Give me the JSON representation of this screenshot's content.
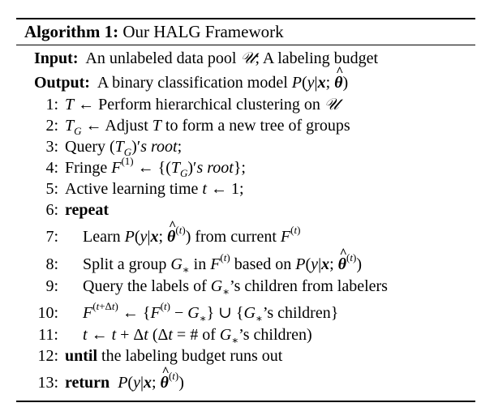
{
  "algorithm": {
    "caption_label": "Algorithm 1:",
    "caption_title": "Our HALG Framework",
    "input_label": "Input:",
    "input_text": "An unlabeled data pool 𝒰; A labeling budget",
    "output_label": "Output:",
    "output_text": "A binary classification model P(y|x; θ̂)",
    "lines": [
      {
        "num": "1:",
        "text": "T ← Perform hierarchical clustering on 𝒰"
      },
      {
        "num": "2:",
        "text": "T_G ← Adjust T to form a new tree of groups"
      },
      {
        "num": "3:",
        "text": "Query (T_G)'s root;"
      },
      {
        "num": "4:",
        "text": "Fringe F^(1) ← {(T_G)'s root};"
      },
      {
        "num": "5:",
        "text": "Active learning time t ← 1;"
      },
      {
        "num": "6:",
        "text": "repeat"
      },
      {
        "num": "7:",
        "text": "Learn P(y|x; θ̂^(t)) from current F^(t)"
      },
      {
        "num": "8:",
        "text": "Split a group G_* in F^(t) based on P(y|x; θ̂^(t))"
      },
      {
        "num": "9:",
        "text": "Query the labels of G_*'s children from labelers"
      },
      {
        "num": "10:",
        "text": "F^(t+Δt) ← {F^(t) − G_*} ∪ {G_*'s children}"
      },
      {
        "num": "11:",
        "text": "t ← t + Δt (Δt = # of G_*'s children)"
      },
      {
        "num": "12:",
        "text": "until the labeling budget runs out"
      },
      {
        "num": "13:",
        "text": "return P(y|x; θ̂^(t))"
      }
    ]
  }
}
